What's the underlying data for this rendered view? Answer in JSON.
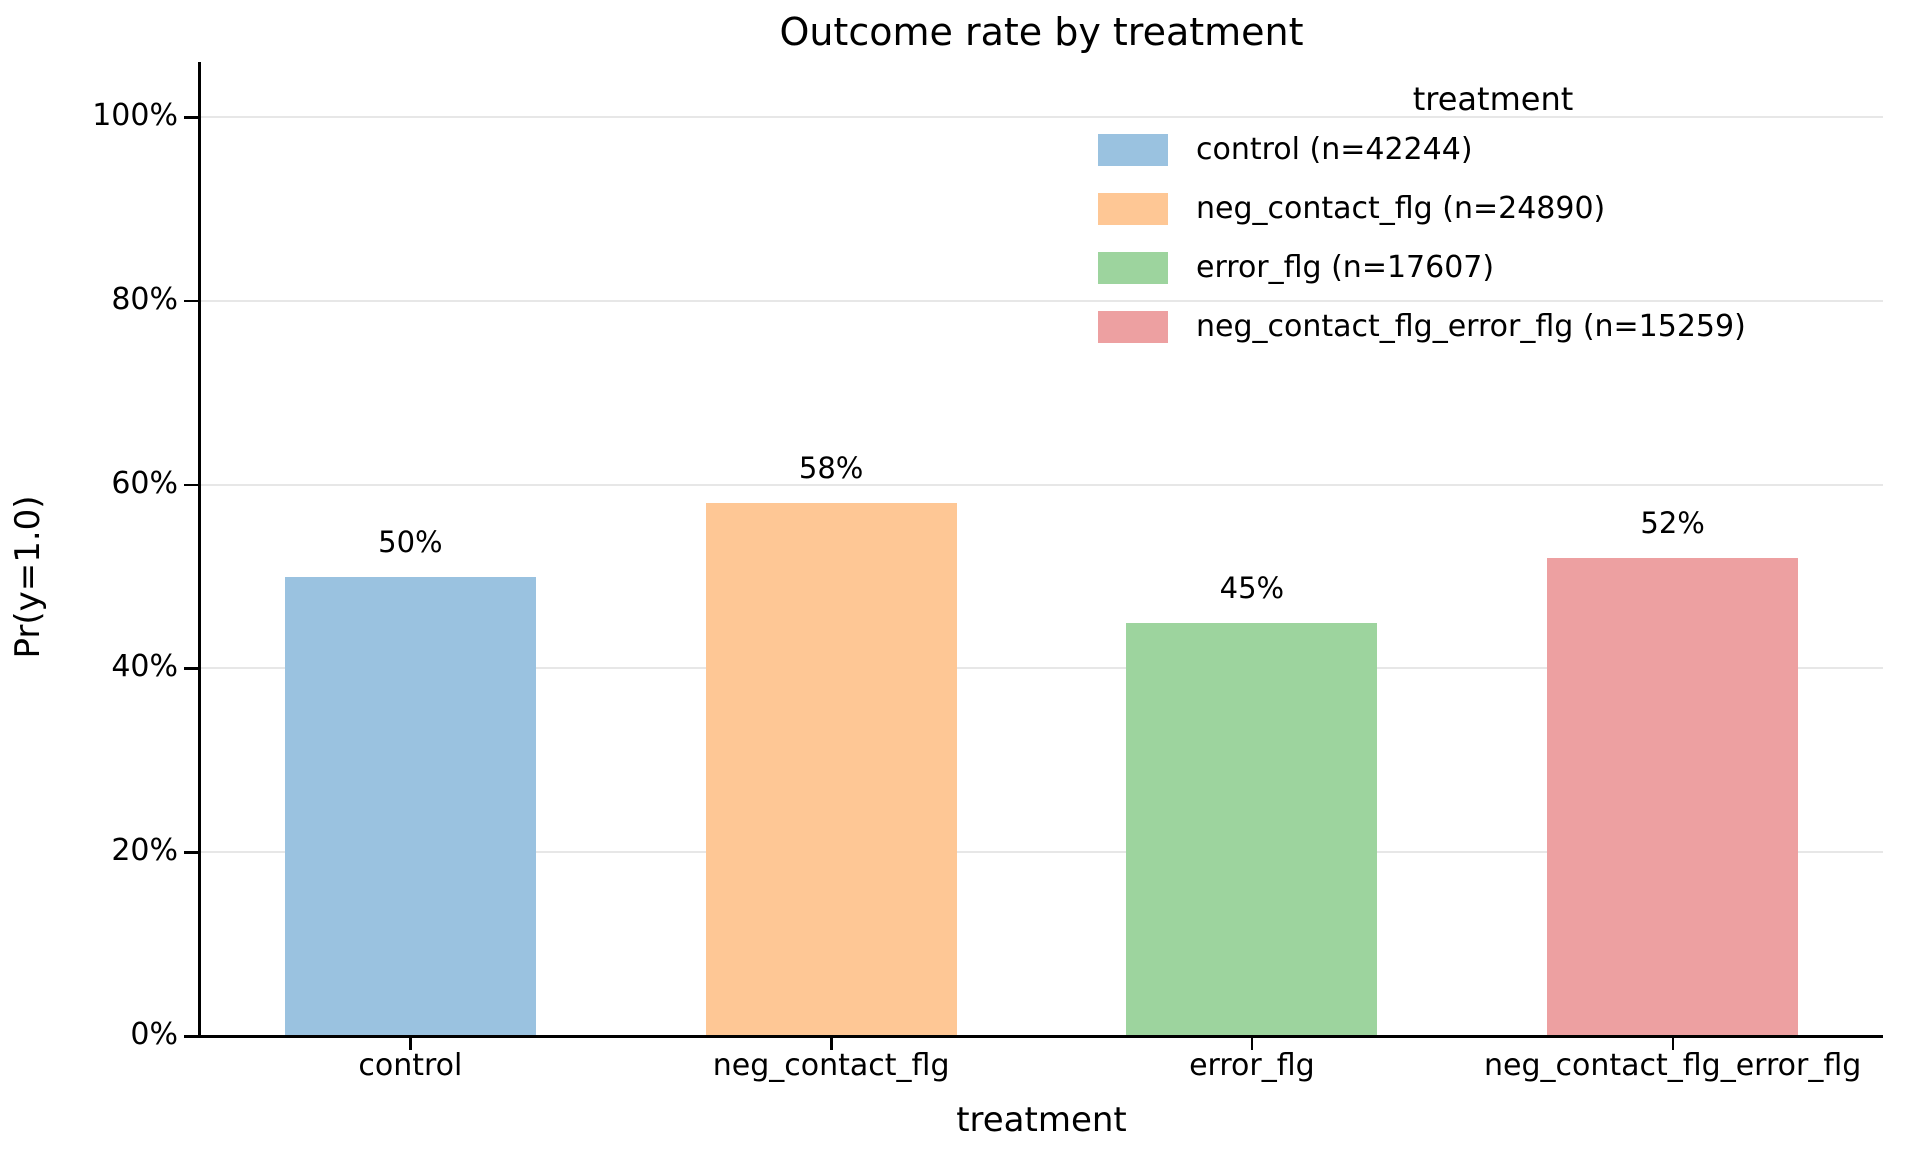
{
  "chart_data": {
    "type": "bar",
    "title": "Outcome rate by treatment",
    "xlabel": "treatment",
    "ylabel": "Pr(y=1.0)",
    "categories": [
      "control",
      "neg_contact_flg",
      "error_flg",
      "neg_contact_flg_error_flg"
    ],
    "values": [
      50,
      58,
      45,
      52
    ],
    "bar_labels": [
      "50%",
      "58%",
      "45%",
      "52%"
    ],
    "sample_sizes": [
      42244,
      24890,
      17607,
      15259
    ],
    "bar_colors": [
      "#9ac2e0",
      "#fec795",
      "#9dd49e",
      "#eda0a1"
    ],
    "ylim": [
      0,
      106
    ],
    "ytick_values": [
      0,
      20,
      40,
      60,
      80,
      100
    ],
    "ytick_labels": [
      "0%",
      "20%",
      "40%",
      "60%",
      "80%",
      "100%"
    ],
    "grid": true,
    "legend": {
      "title": "treatment",
      "position": "upper right",
      "entries": [
        {
          "label": "control (n=42244)",
          "color": "#9ac2e0"
        },
        {
          "label": "neg_contact_flg (n=24890)",
          "color": "#fec795"
        },
        {
          "label": "error_flg (n=17607)",
          "color": "#9dd49e"
        },
        {
          "label": "neg_contact_flg_error_flg (n=15259)",
          "color": "#eda0a1"
        }
      ]
    }
  }
}
